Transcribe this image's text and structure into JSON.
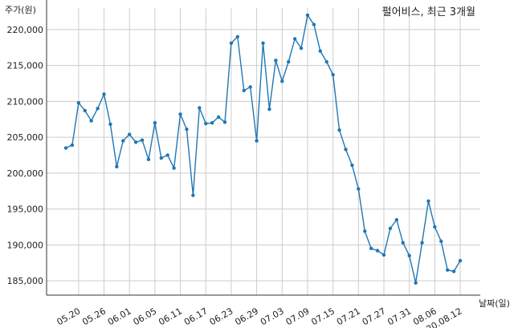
{
  "chart_data": {
    "type": "line",
    "title": "펄어비스, 최근 3개월",
    "ylabel": "주가(원)",
    "xlabel": "날짜(일)",
    "ylim": [
      183000,
      223000
    ],
    "yticks": [
      185000,
      190000,
      195000,
      200000,
      205000,
      210000,
      215000,
      220000
    ],
    "ytick_labels": [
      "185,000",
      "190,000",
      "195,000",
      "200,000",
      "205,000",
      "210,000",
      "215,000",
      "220,000"
    ],
    "xticks": [
      {
        "index": 2,
        "label": "05.20"
      },
      {
        "index": 6,
        "label": "05.26"
      },
      {
        "index": 10,
        "label": "06.01"
      },
      {
        "index": 14,
        "label": "06.05"
      },
      {
        "index": 18,
        "label": "06.11"
      },
      {
        "index": 22,
        "label": "06.17"
      },
      {
        "index": 26,
        "label": "06.23"
      },
      {
        "index": 30,
        "label": "06.29"
      },
      {
        "index": 34,
        "label": "07.03"
      },
      {
        "index": 38,
        "label": "07.09"
      },
      {
        "index": 42,
        "label": "07.15"
      },
      {
        "index": 46,
        "label": "07.21"
      },
      {
        "index": 50,
        "label": "07.27"
      },
      {
        "index": 54,
        "label": "07.31"
      },
      {
        "index": 58,
        "label": "08.06"
      },
      {
        "index": 62,
        "label": "20.08.12"
      }
    ],
    "grid": true,
    "series": [
      {
        "color": "#1f77b4",
        "values": [
          203500,
          203900,
          209800,
          208700,
          207300,
          209000,
          211000,
          206800,
          200900,
          204500,
          205400,
          204300,
          204600,
          201900,
          207000,
          202100,
          202500,
          200700,
          208200,
          206100,
          196900,
          209100,
          206900,
          207000,
          207800,
          207100,
          218100,
          219000,
          211500,
          212000,
          204500,
          218100,
          208900,
          215700,
          212800,
          215500,
          218700,
          217400,
          222000,
          220700,
          217000,
          215500,
          213700,
          206000,
          203300,
          201100,
          197800,
          191900,
          189500,
          189200,
          188600,
          192300,
          193500,
          190300,
          188500,
          184700,
          190300,
          196100,
          192500,
          190500,
          186500,
          186300,
          187800
        ]
      }
    ]
  }
}
